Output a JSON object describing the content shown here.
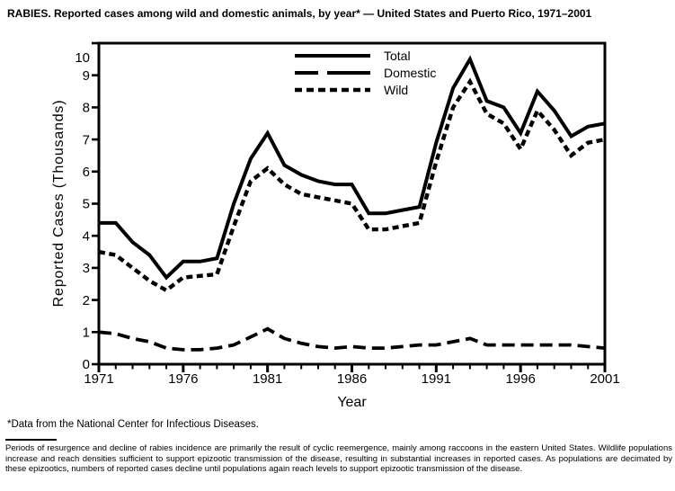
{
  "footnote": "*Data from the National Center for Infectious Diseases.",
  "note": "Periods of resurgence and decline of rabies incidence are primarily the result of cyclic reemergence, mainly among raccoons in the eastern United States. Wildlife populations increase and reach densities sufficient to support epizootic transmission of the disease, resulting in substantial increases in reported cases. As populations are decimated by these epizootics, numbers of reported cases decline until populations again reach levels to support epizootic transmission of the disease.",
  "chart_data": {
    "type": "line",
    "title": "RABIES. Reported cases among wild and domestic animals, by year* — United States and Puerto Rico, 1971–2001",
    "xlabel": "Year",
    "ylabel": "Reported Cases (Thousands)",
    "xlim": [
      1971,
      2001
    ],
    "ylim": [
      0,
      10
    ],
    "grid": false,
    "background": "#ffffff",
    "line_color": "#000000",
    "legend_position": "inside-top-center",
    "x": [
      1971,
      1972,
      1973,
      1974,
      1975,
      1976,
      1977,
      1978,
      1979,
      1980,
      1981,
      1982,
      1983,
      1984,
      1985,
      1986,
      1987,
      1988,
      1989,
      1990,
      1991,
      1992,
      1993,
      1994,
      1995,
      1996,
      1997,
      1998,
      1999,
      2000,
      2001
    ],
    "x_tick_labels": [
      1971,
      1976,
      1981,
      1986,
      1991,
      1996,
      2001
    ],
    "y_ticks": [
      0,
      1,
      2,
      3,
      4,
      5,
      6,
      7,
      8,
      9,
      10
    ],
    "series": [
      {
        "name": "Total",
        "line_style": "solid",
        "values": [
          4.4,
          4.4,
          3.8,
          3.4,
          2.7,
          3.2,
          3.2,
          3.3,
          5.0,
          6.4,
          7.2,
          6.2,
          5.9,
          5.7,
          5.6,
          5.6,
          4.7,
          4.7,
          4.8,
          4.9,
          6.9,
          8.6,
          9.5,
          8.2,
          8.0,
          7.2,
          8.5,
          7.9,
          7.1,
          7.4,
          7.5
        ]
      },
      {
        "name": "Domestic",
        "line_style": "long-dash",
        "values": [
          1.0,
          0.95,
          0.8,
          0.7,
          0.5,
          0.45,
          0.45,
          0.5,
          0.6,
          0.85,
          1.1,
          0.8,
          0.65,
          0.55,
          0.5,
          0.55,
          0.5,
          0.5,
          0.55,
          0.6,
          0.6,
          0.7,
          0.8,
          0.6,
          0.6,
          0.6,
          0.6,
          0.6,
          0.6,
          0.55,
          0.5
        ]
      },
      {
        "name": "Wild",
        "line_style": "short-dash",
        "values": [
          3.5,
          3.4,
          3.0,
          2.6,
          2.3,
          2.7,
          2.75,
          2.8,
          4.3,
          5.7,
          6.1,
          5.6,
          5.3,
          5.2,
          5.1,
          5.0,
          4.2,
          4.2,
          4.3,
          4.4,
          6.3,
          8.0,
          8.8,
          7.8,
          7.5,
          6.7,
          7.9,
          7.3,
          6.5,
          6.9,
          7.0
        ]
      }
    ]
  }
}
